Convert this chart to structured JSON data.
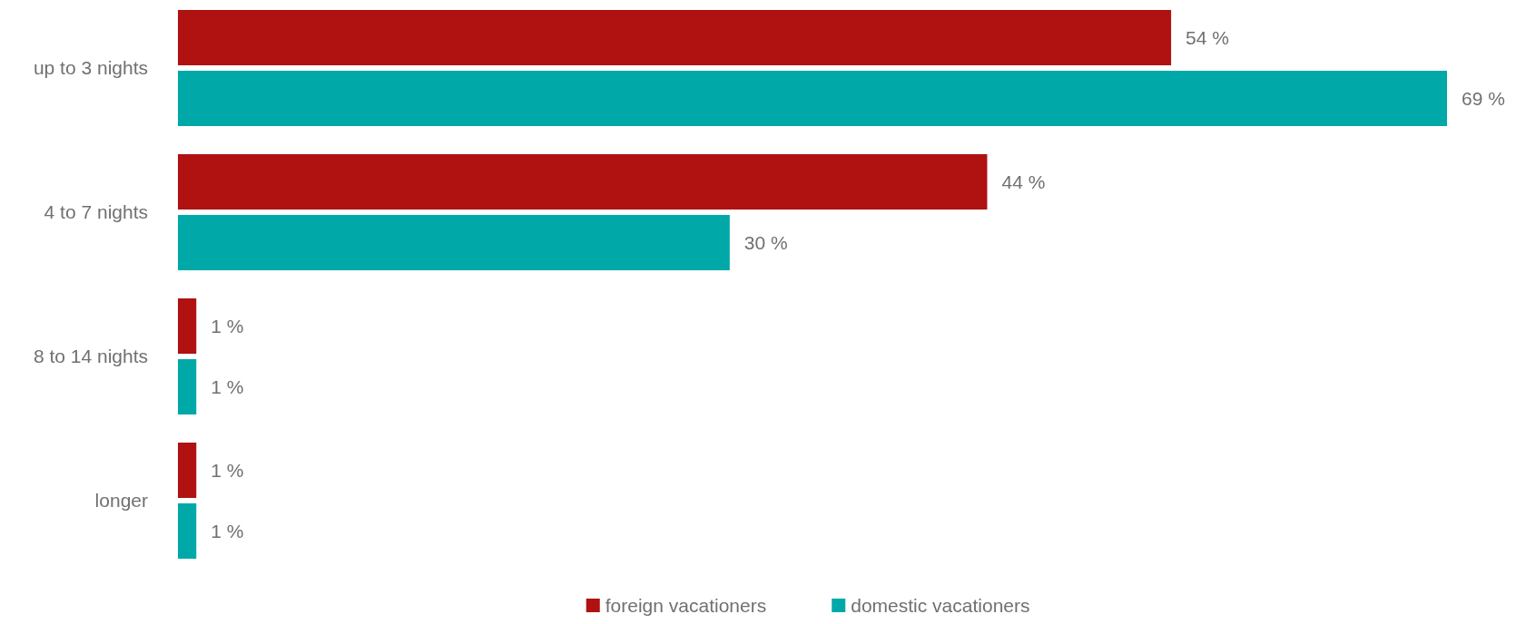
{
  "chart_data": {
    "type": "bar",
    "orientation": "horizontal",
    "categories": [
      "up to 3 nights",
      "4 to 7 nights",
      "8 to 14 nights",
      "longer"
    ],
    "series": [
      {
        "name": "foreign vacationers",
        "color": "#b01111",
        "values": [
          54,
          44,
          1,
          1
        ],
        "value_labels": [
          "54 %",
          "44 %",
          "1 %",
          "1 %"
        ]
      },
      {
        "name": "domestic vacationers",
        "color": "#00a8a8",
        "values": [
          69,
          30,
          1,
          1
        ],
        "value_labels": [
          "69 %",
          "30 %",
          "1 %",
          "1 %"
        ]
      }
    ],
    "tick_labels": "y",
    "legend": "bottom"
  }
}
